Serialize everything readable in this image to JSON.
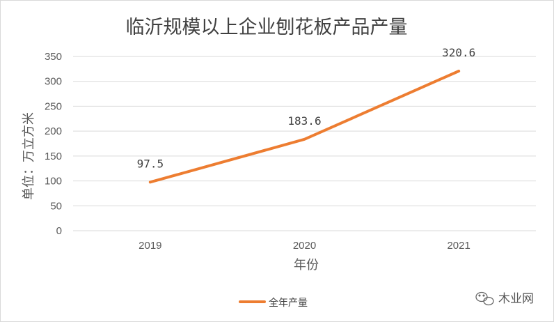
{
  "chart_data": {
    "type": "line",
    "title": "临沂规模以上企业刨花板产品产量",
    "xlabel": "年份",
    "ylabel": "单位：万立方米",
    "categories": [
      "2019",
      "2020",
      "2021"
    ],
    "series": [
      {
        "name": "全年产量",
        "values": [
          97.5,
          183.6,
          320.6
        ],
        "color": "#ED7D31"
      }
    ],
    "data_labels": [
      "97.5",
      "183.6",
      "320.6"
    ],
    "yticks": [
      0,
      50,
      100,
      150,
      200,
      250,
      300,
      350
    ],
    "ylim": [
      0,
      350
    ],
    "grid": true,
    "legend": "bottom"
  },
  "watermark": {
    "text": "木业网",
    "icon": "wechat-icon"
  },
  "colors": {
    "gridline": "#d9d9d9",
    "series": "#ED7D31"
  }
}
